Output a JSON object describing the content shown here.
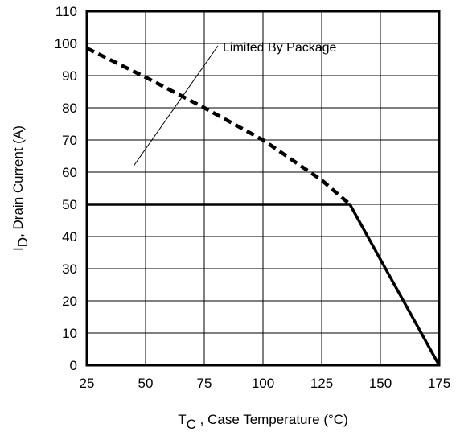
{
  "chart_data": {
    "type": "line",
    "xlabel": {
      "main": "T",
      "sub": "C",
      "rest": " , Case Temperature (°C)"
    },
    "ylabel": {
      "main": "I",
      "sub": "D",
      "rest": ",  Drain Current (A)"
    },
    "xlim": [
      25,
      175
    ],
    "ylim": [
      0,
      110
    ],
    "x_ticks": [
      25,
      50,
      75,
      100,
      125,
      150,
      175
    ],
    "y_ticks": [
      0,
      10,
      20,
      30,
      40,
      50,
      60,
      70,
      80,
      90,
      100,
      110
    ],
    "grid": true,
    "annotation": {
      "text": "Limited By Package",
      "points_to": [
        45,
        62
      ]
    },
    "series": [
      {
        "name": "",
        "style": "dashed",
        "color": "#000000",
        "x": [
          25,
          50,
          75,
          100,
          125,
          137
        ],
        "y": [
          98.5,
          89.5,
          80,
          70,
          57.5,
          50
        ]
      },
      {
        "name": "",
        "style": "solid",
        "color": "#000000",
        "x": [
          25,
          137,
          175
        ],
        "y": [
          50,
          50,
          0
        ]
      }
    ]
  }
}
